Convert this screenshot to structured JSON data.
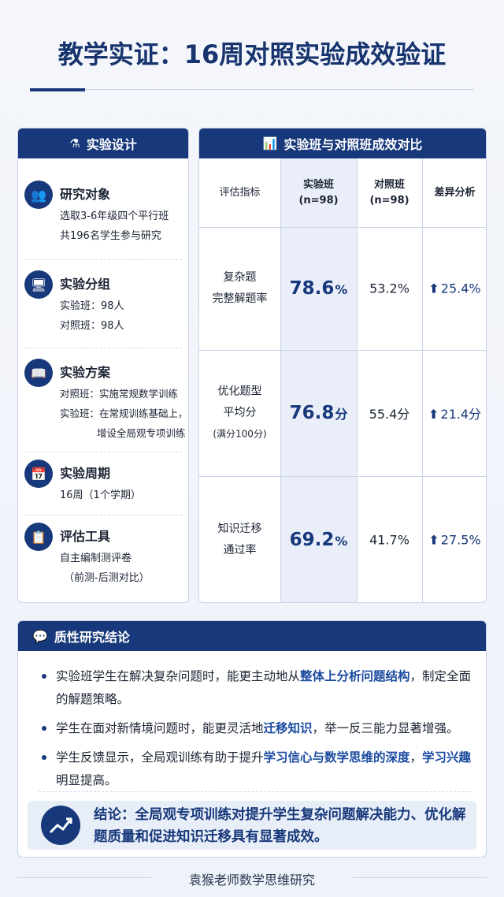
{
  "header": {
    "title": "教学实证：16周对照实验成效验证"
  },
  "design": {
    "title": "实验设计",
    "items": [
      {
        "title": "研究对象",
        "lines": [
          "选取3-6年级四个平行班",
          "共196名学生参与研究"
        ]
      },
      {
        "title": "实验分组",
        "lines": [
          "实验班：98人",
          "对照班：98人"
        ]
      },
      {
        "title": "实验方案",
        "lines": [
          "对照班：实施常规数学训练",
          "实验班：在常规训练基础上，",
          "增设全局观专项训练"
        ]
      },
      {
        "title": "实验周期",
        "lines": [
          "16周（1个学期）"
        ]
      },
      {
        "title": "评估工具",
        "lines": [
          "自主编制测评卷",
          "（前测-后测对比）"
        ]
      }
    ]
  },
  "comparison": {
    "title": "实验班与对照班成效对比",
    "headers": [
      [
        "评估指标"
      ],
      [
        "实验班",
        "(n=98)"
      ],
      [
        "对照班",
        "(n=98)"
      ],
      [
        "差异分析"
      ]
    ],
    "rows": [
      {
        "metric": [
          "复杂题",
          "完整解题率"
        ],
        "experimental": {
          "value": "78.6",
          "unit": "%"
        },
        "control": "53.2%",
        "difference": "25.4%"
      },
      {
        "metric": [
          "优化题型",
          "平均分",
          "(满分100分)"
        ],
        "experimental": {
          "value": "76.8",
          "unit": "分"
        },
        "control": "55.4分",
        "difference": "21.4分"
      },
      {
        "metric": [
          "知识迁移",
          "通过率"
        ],
        "experimental": {
          "value": "69.2",
          "unit": "%"
        },
        "control": "41.7%",
        "difference": "27.5%"
      }
    ]
  },
  "findings": {
    "title": "质性研究结论",
    "bullets": [
      [
        {
          "text": "实验班学生在解决复杂问题时，能更主动地从"
        },
        {
          "text": "整体上分析问题结构",
          "em": true
        },
        {
          "text": "，制定全面的解题策略。"
        }
      ],
      [
        {
          "text": "学生在面对新情境问题时，能更灵活地"
        },
        {
          "text": "迁移知识",
          "em": true
        },
        {
          "text": "，举一反三能力显著增强。"
        }
      ],
      [
        {
          "text": "学生反馈显示，全局观训练有助于提升"
        },
        {
          "text": "学习信心与数学思维的深度",
          "em": true
        },
        {
          "text": "，"
        },
        {
          "text": "学习兴趣",
          "em": true
        },
        {
          "text": "明显提高。"
        }
      ]
    ],
    "conclusion": "结论：全局观专项训练对提升学生复杂问题解决能力、优化解题质量和促进知识迁移具有显著成效。"
  },
  "footer": "袁猴老师数学思维研究"
}
